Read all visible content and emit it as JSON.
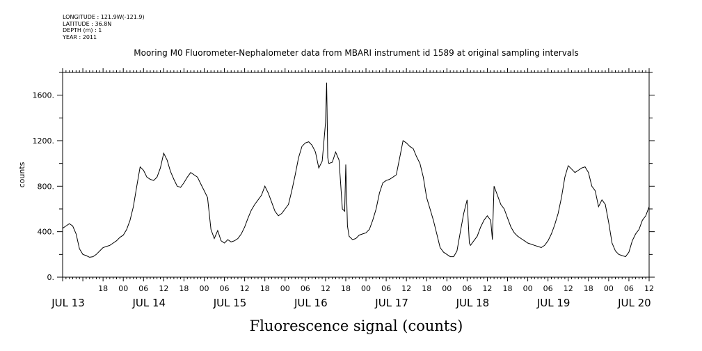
{
  "meta": {
    "longitude": "LONGITUDE : 121.9W(-121.9)",
    "latitude": "LATITUDE : 36.8N",
    "depth": "DEPTH (m) : 1",
    "year": "YEAR : 2011"
  },
  "chart_data": {
    "type": "line",
    "title": "Mooring M0 Fluorometer-Nephalometer data from MBARI instrument id 1589 at original sampling intervals",
    "xlabel": "Fluorescence signal (counts)",
    "ylabel": "counts",
    "ylim": [
      0,
      1800
    ],
    "y_ticks": [
      0,
      400,
      800,
      1200,
      1600
    ],
    "y_tick_labels": [
      "0.",
      "400.",
      "800.",
      "1200.",
      "1600."
    ],
    "xlim": [
      "2011-07-13T06:00",
      "2011-07-20T12:00"
    ],
    "x_hour_ticks": [
      {
        "t": "2011-07-13T18:00",
        "label": "18"
      },
      {
        "t": "2011-07-14T00:00",
        "label": "00"
      },
      {
        "t": "2011-07-14T06:00",
        "label": "06"
      },
      {
        "t": "2011-07-14T12:00",
        "label": "12"
      },
      {
        "t": "2011-07-14T18:00",
        "label": "18"
      },
      {
        "t": "2011-07-15T00:00",
        "label": "00"
      },
      {
        "t": "2011-07-15T06:00",
        "label": "06"
      },
      {
        "t": "2011-07-15T12:00",
        "label": "12"
      },
      {
        "t": "2011-07-15T18:00",
        "label": "18"
      },
      {
        "t": "2011-07-16T00:00",
        "label": "00"
      },
      {
        "t": "2011-07-16T06:00",
        "label": "06"
      },
      {
        "t": "2011-07-16T12:00",
        "label": "12"
      },
      {
        "t": "2011-07-16T18:00",
        "label": "18"
      },
      {
        "t": "2011-07-17T00:00",
        "label": "00"
      },
      {
        "t": "2011-07-17T06:00",
        "label": "06"
      },
      {
        "t": "2011-07-17T12:00",
        "label": "12"
      },
      {
        "t": "2011-07-17T18:00",
        "label": "18"
      },
      {
        "t": "2011-07-18T00:00",
        "label": "00"
      },
      {
        "t": "2011-07-18T06:00",
        "label": "06"
      },
      {
        "t": "2011-07-18T12:00",
        "label": "12"
      },
      {
        "t": "2011-07-18T18:00",
        "label": "18"
      },
      {
        "t": "2011-07-19T00:00",
        "label": "00"
      },
      {
        "t": "2011-07-19T06:00",
        "label": "06"
      },
      {
        "t": "2011-07-19T12:00",
        "label": "12"
      },
      {
        "t": "2011-07-19T18:00",
        "label": "18"
      },
      {
        "t": "2011-07-20T00:00",
        "label": "00"
      },
      {
        "t": "2011-07-20T06:00",
        "label": "06"
      },
      {
        "t": "2011-07-20T12:00",
        "label": "12"
      }
    ],
    "x_day_labels": [
      {
        "t": "2011-07-13T06:00",
        "label": "JUL 13"
      },
      {
        "t": "2011-07-14T06:00",
        "label": "JUL 14"
      },
      {
        "t": "2011-07-15T06:00",
        "label": "JUL 15"
      },
      {
        "t": "2011-07-16T06:00",
        "label": "JUL 16"
      },
      {
        "t": "2011-07-17T06:00",
        "label": "JUL 17"
      },
      {
        "t": "2011-07-18T06:00",
        "label": "JUL 18"
      },
      {
        "t": "2011-07-19T06:00",
        "label": "JUL 19"
      },
      {
        "t": "2011-07-20T06:00",
        "label": "JUL 20"
      }
    ],
    "grid": false,
    "series": [
      {
        "color": "#000000",
        "points": [
          [
            "2011-07-13T06:00",
            430
          ],
          [
            "2011-07-13T07:00",
            450
          ],
          [
            "2011-07-13T08:00",
            470
          ],
          [
            "2011-07-13T09:00",
            450
          ],
          [
            "2011-07-13T10:00",
            380
          ],
          [
            "2011-07-13T11:00",
            250
          ],
          [
            "2011-07-13T12:00",
            200
          ],
          [
            "2011-07-13T13:00",
            190
          ],
          [
            "2011-07-13T14:00",
            175
          ],
          [
            "2011-07-13T15:00",
            180
          ],
          [
            "2011-07-13T16:00",
            200
          ],
          [
            "2011-07-13T17:00",
            230
          ],
          [
            "2011-07-13T18:00",
            260
          ],
          [
            "2011-07-13T19:00",
            270
          ],
          [
            "2011-07-13T20:00",
            280
          ],
          [
            "2011-07-13T21:00",
            300
          ],
          [
            "2011-07-13T22:00",
            320
          ],
          [
            "2011-07-13T23:00",
            350
          ],
          [
            "2011-07-14T00:00",
            370
          ],
          [
            "2011-07-14T01:00",
            420
          ],
          [
            "2011-07-14T02:00",
            500
          ],
          [
            "2011-07-14T03:00",
            620
          ],
          [
            "2011-07-14T04:00",
            800
          ],
          [
            "2011-07-14T05:00",
            970
          ],
          [
            "2011-07-14T06:00",
            940
          ],
          [
            "2011-07-14T07:00",
            880
          ],
          [
            "2011-07-14T08:00",
            860
          ],
          [
            "2011-07-14T09:00",
            850
          ],
          [
            "2011-07-14T10:00",
            880
          ],
          [
            "2011-07-14T11:00",
            960
          ],
          [
            "2011-07-14T12:00",
            1090
          ],
          [
            "2011-07-14T13:00",
            1030
          ],
          [
            "2011-07-14T14:00",
            930
          ],
          [
            "2011-07-14T15:00",
            860
          ],
          [
            "2011-07-14T16:00",
            800
          ],
          [
            "2011-07-14T17:00",
            790
          ],
          [
            "2011-07-14T18:00",
            830
          ],
          [
            "2011-07-14T19:00",
            880
          ],
          [
            "2011-07-14T20:00",
            920
          ],
          [
            "2011-07-14T21:00",
            900
          ],
          [
            "2011-07-14T22:00",
            880
          ],
          [
            "2011-07-14T23:00",
            820
          ],
          [
            "2011-07-15T00:00",
            760
          ],
          [
            "2011-07-15T01:00",
            700
          ],
          [
            "2011-07-15T02:00",
            420
          ],
          [
            "2011-07-15T03:00",
            340
          ],
          [
            "2011-07-15T04:00",
            410
          ],
          [
            "2011-07-15T05:00",
            320
          ],
          [
            "2011-07-15T06:00",
            300
          ],
          [
            "2011-07-15T07:00",
            330
          ],
          [
            "2011-07-15T08:00",
            310
          ],
          [
            "2011-07-15T09:00",
            320
          ],
          [
            "2011-07-15T10:00",
            340
          ],
          [
            "2011-07-15T11:00",
            380
          ],
          [
            "2011-07-15T12:00",
            440
          ],
          [
            "2011-07-15T13:00",
            520
          ],
          [
            "2011-07-15T14:00",
            590
          ],
          [
            "2011-07-15T15:00",
            640
          ],
          [
            "2011-07-15T16:00",
            680
          ],
          [
            "2011-07-15T17:00",
            720
          ],
          [
            "2011-07-15T18:00",
            800
          ],
          [
            "2011-07-15T19:00",
            740
          ],
          [
            "2011-07-15T20:00",
            660
          ],
          [
            "2011-07-15T21:00",
            580
          ],
          [
            "2011-07-15T22:00",
            540
          ],
          [
            "2011-07-15T23:00",
            560
          ],
          [
            "2011-07-16T00:00",
            600
          ],
          [
            "2011-07-16T01:00",
            640
          ],
          [
            "2011-07-16T02:00",
            760
          ],
          [
            "2011-07-16T03:00",
            900
          ],
          [
            "2011-07-16T04:00",
            1050
          ],
          [
            "2011-07-16T05:00",
            1150
          ],
          [
            "2011-07-16T06:00",
            1180
          ],
          [
            "2011-07-16T07:00",
            1190
          ],
          [
            "2011-07-16T08:00",
            1160
          ],
          [
            "2011-07-16T09:00",
            1100
          ],
          [
            "2011-07-16T10:00",
            960
          ],
          [
            "2011-07-16T11:00",
            1020
          ],
          [
            "2011-07-16T12:00",
            1360
          ],
          [
            "2011-07-16T12:20",
            1710
          ],
          [
            "2011-07-16T12:40",
            1050
          ],
          [
            "2011-07-16T13:00",
            1000
          ],
          [
            "2011-07-16T14:00",
            1010
          ],
          [
            "2011-07-16T15:00",
            1100
          ],
          [
            "2011-07-16T16:00",
            1030
          ],
          [
            "2011-07-16T17:00",
            600
          ],
          [
            "2011-07-16T17:40",
            580
          ],
          [
            "2011-07-16T18:00",
            990
          ],
          [
            "2011-07-16T18:30",
            450
          ],
          [
            "2011-07-16T19:00",
            360
          ],
          [
            "2011-07-16T20:00",
            330
          ],
          [
            "2011-07-16T21:00",
            340
          ],
          [
            "2011-07-16T22:00",
            370
          ],
          [
            "2011-07-16T23:00",
            380
          ],
          [
            "2011-07-17T00:00",
            390
          ],
          [
            "2011-07-17T01:00",
            420
          ],
          [
            "2011-07-17T02:00",
            500
          ],
          [
            "2011-07-17T03:00",
            600
          ],
          [
            "2011-07-17T04:00",
            740
          ],
          [
            "2011-07-17T05:00",
            830
          ],
          [
            "2011-07-17T06:00",
            850
          ],
          [
            "2011-07-17T07:00",
            860
          ],
          [
            "2011-07-17T08:00",
            880
          ],
          [
            "2011-07-17T09:00",
            900
          ],
          [
            "2011-07-17T10:00",
            1050
          ],
          [
            "2011-07-17T11:00",
            1200
          ],
          [
            "2011-07-17T12:00",
            1180
          ],
          [
            "2011-07-17T13:00",
            1150
          ],
          [
            "2011-07-17T14:00",
            1130
          ],
          [
            "2011-07-17T15:00",
            1060
          ],
          [
            "2011-07-17T16:00",
            1000
          ],
          [
            "2011-07-17T17:00",
            880
          ],
          [
            "2011-07-17T18:00",
            700
          ],
          [
            "2011-07-17T19:00",
            600
          ],
          [
            "2011-07-17T20:00",
            500
          ],
          [
            "2011-07-17T21:00",
            380
          ],
          [
            "2011-07-17T22:00",
            260
          ],
          [
            "2011-07-17T23:00",
            220
          ],
          [
            "2011-07-18T00:00",
            200
          ],
          [
            "2011-07-18T01:00",
            180
          ],
          [
            "2011-07-18T02:00",
            180
          ],
          [
            "2011-07-18T03:00",
            230
          ],
          [
            "2011-07-18T04:00",
            400
          ],
          [
            "2011-07-18T05:00",
            560
          ],
          [
            "2011-07-18T06:00",
            680
          ],
          [
            "2011-07-18T06:40",
            300
          ],
          [
            "2011-07-18T07:00",
            280
          ],
          [
            "2011-07-18T08:00",
            320
          ],
          [
            "2011-07-18T09:00",
            360
          ],
          [
            "2011-07-18T10:00",
            440
          ],
          [
            "2011-07-18T11:00",
            500
          ],
          [
            "2011-07-18T12:00",
            540
          ],
          [
            "2011-07-18T13:00",
            500
          ],
          [
            "2011-07-18T13:30",
            330
          ],
          [
            "2011-07-18T14:00",
            800
          ],
          [
            "2011-07-18T15:00",
            720
          ],
          [
            "2011-07-18T16:00",
            640
          ],
          [
            "2011-07-18T17:00",
            600
          ],
          [
            "2011-07-18T18:00",
            520
          ],
          [
            "2011-07-18T19:00",
            440
          ],
          [
            "2011-07-18T20:00",
            390
          ],
          [
            "2011-07-18T21:00",
            360
          ],
          [
            "2011-07-18T22:00",
            340
          ],
          [
            "2011-07-18T23:00",
            320
          ],
          [
            "2011-07-19T00:00",
            300
          ],
          [
            "2011-07-19T01:00",
            290
          ],
          [
            "2011-07-19T02:00",
            280
          ],
          [
            "2011-07-19T03:00",
            270
          ],
          [
            "2011-07-19T04:00",
            260
          ],
          [
            "2011-07-19T05:00",
            280
          ],
          [
            "2011-07-19T06:00",
            320
          ],
          [
            "2011-07-19T07:00",
            380
          ],
          [
            "2011-07-19T08:00",
            460
          ],
          [
            "2011-07-19T09:00",
            560
          ],
          [
            "2011-07-19T10:00",
            700
          ],
          [
            "2011-07-19T11:00",
            880
          ],
          [
            "2011-07-19T12:00",
            980
          ],
          [
            "2011-07-19T13:00",
            950
          ],
          [
            "2011-07-19T14:00",
            920
          ],
          [
            "2011-07-19T15:00",
            940
          ],
          [
            "2011-07-19T16:00",
            960
          ],
          [
            "2011-07-19T17:00",
            970
          ],
          [
            "2011-07-19T18:00",
            920
          ],
          [
            "2011-07-19T19:00",
            800
          ],
          [
            "2011-07-19T20:00",
            760
          ],
          [
            "2011-07-19T21:00",
            620
          ],
          [
            "2011-07-19T22:00",
            680
          ],
          [
            "2011-07-19T23:00",
            640
          ],
          [
            "2011-07-20T00:00",
            480
          ],
          [
            "2011-07-20T01:00",
            300
          ],
          [
            "2011-07-20T02:00",
            230
          ],
          [
            "2011-07-20T03:00",
            200
          ],
          [
            "2011-07-20T04:00",
            190
          ],
          [
            "2011-07-20T05:00",
            180
          ],
          [
            "2011-07-20T06:00",
            220
          ],
          [
            "2011-07-20T07:00",
            320
          ],
          [
            "2011-07-20T08:00",
            380
          ],
          [
            "2011-07-20T09:00",
            420
          ],
          [
            "2011-07-20T10:00",
            500
          ],
          [
            "2011-07-20T11:00",
            540
          ],
          [
            "2011-07-20T12:00",
            620
          ]
        ]
      }
    ]
  }
}
